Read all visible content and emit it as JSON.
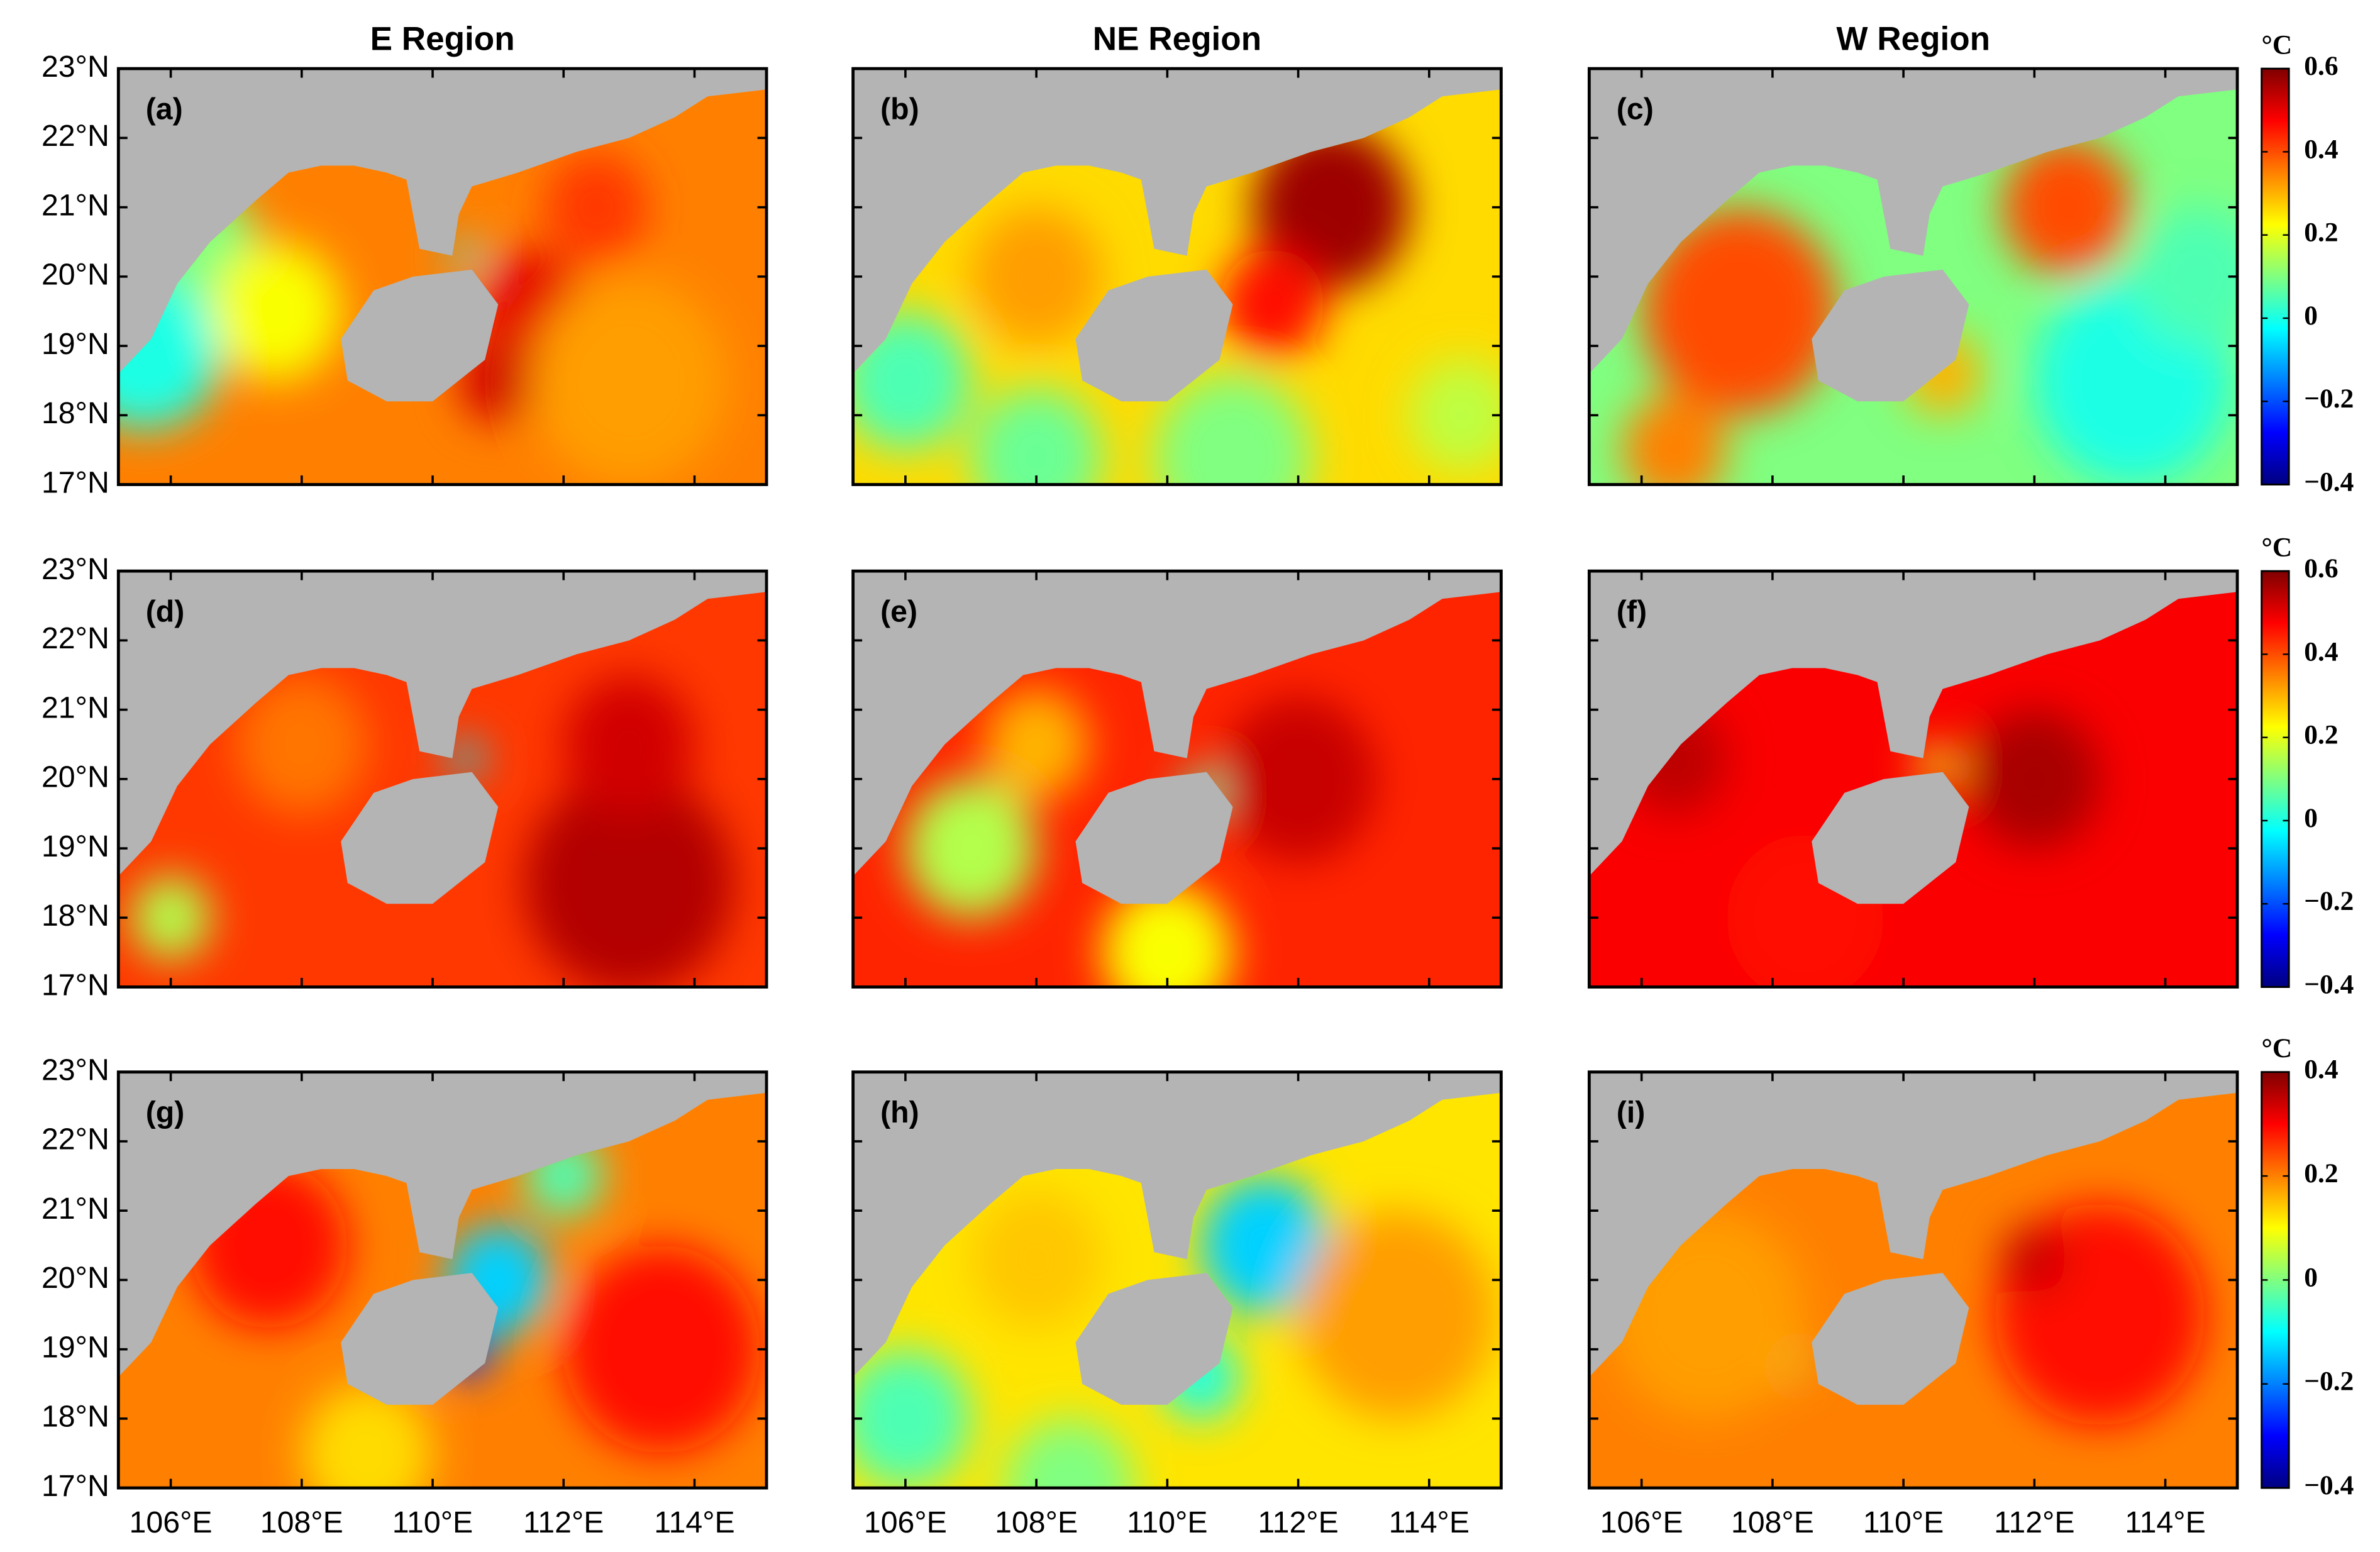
{
  "chart_data": {
    "type": "map",
    "columns": [
      "E Region",
      "NE Region",
      "W Region"
    ],
    "panels": [
      "(a)",
      "(b)",
      "(c)",
      "(d)",
      "(e)",
      "(f)",
      "(g)",
      "(h)",
      "(i)"
    ],
    "xlim": [
      105.2,
      115.1
    ],
    "ylim": [
      17,
      23
    ],
    "xticks": [
      {
        "value": 106,
        "label": "106°E"
      },
      {
        "value": 108,
        "label": "108°E"
      },
      {
        "value": 110,
        "label": "110°E"
      },
      {
        "value": 112,
        "label": "112°E"
      },
      {
        "value": 114,
        "label": "114°E"
      }
    ],
    "yticks": [
      {
        "value": 17,
        "label": "17°N"
      },
      {
        "value": 18,
        "label": "18°N"
      },
      {
        "value": 19,
        "label": "19°N"
      },
      {
        "value": 20,
        "label": "20°N"
      },
      {
        "value": 21,
        "label": "21°N"
      },
      {
        "value": 22,
        "label": "22°N"
      },
      {
        "value": 23,
        "label": "23°N"
      }
    ],
    "colorbars": [
      {
        "unit": "°C",
        "lim": [
          -0.4,
          0.6
        ],
        "ticks": [
          {
            "value": -0.4,
            "label": "−0.4"
          },
          {
            "value": -0.2,
            "label": "−0.2"
          },
          0,
          0.2,
          0.4,
          0.6
        ]
      },
      {
        "unit": "°C",
        "lim": [
          -0.4,
          0.6
        ],
        "ticks": [
          {
            "value": -0.4,
            "label": "−0.4"
          },
          {
            "value": -0.2,
            "label": "−0.2"
          },
          0,
          0.2,
          0.4,
          0.6
        ]
      },
      {
        "unit": "°C",
        "lim": [
          -0.4,
          0.4
        ],
        "ticks": [
          {
            "value": -0.4,
            "label": "−0.4"
          },
          {
            "value": -0.2,
            "label": "−0.2"
          },
          0,
          0.2,
          0.4
        ]
      }
    ]
  }
}
